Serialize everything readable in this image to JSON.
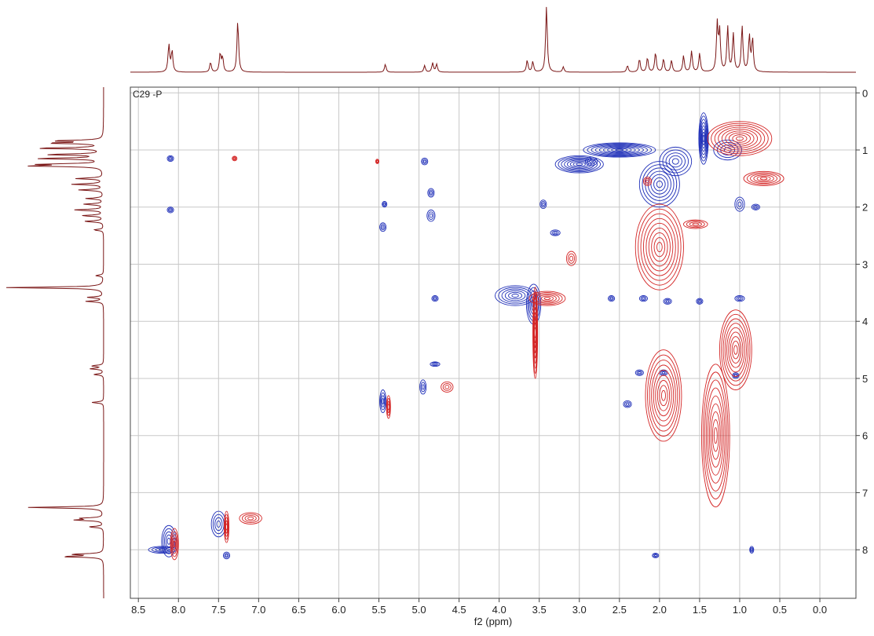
{
  "chart_data": {
    "type": "heatmap",
    "subtype": "2D NMR contour plot (COSY-type, positive/negative contours) with 1D projections",
    "title": "C29 -P",
    "xlabel": "f2 (ppm)",
    "ylabel": "",
    "x_direction": "reversed",
    "y_direction": "increasing-downward",
    "xlim": [
      8.6,
      -0.45
    ],
    "ylim": [
      -0.1,
      8.85
    ],
    "x_ticks": [
      "8.5",
      "8.0",
      "7.5",
      "7.0",
      "6.5",
      "6.0",
      "5.5",
      "5.0",
      "4.5",
      "4.0",
      "3.5",
      "3.0",
      "2.5",
      "2.0",
      "1.5",
      "1.0",
      "0.5",
      "0.0"
    ],
    "y_ticks": [
      "0",
      "1",
      "2",
      "3",
      "4",
      "5",
      "6",
      "7",
      "8"
    ],
    "y_axis_side": "right",
    "grid": true,
    "colors": {
      "positive_contour": "#1f2fb8",
      "negative_contour": "#d42626",
      "projection": "#7a1616",
      "grid": "#c8c8c8",
      "frame": "#444444"
    },
    "series": [
      {
        "sign": "positive",
        "color": "#1f2fb8",
        "peaks": [
          {
            "x": 8.1,
            "y": 1.15,
            "w": 0.08,
            "h": 0.1
          },
          {
            "x": 8.1,
            "y": 2.05,
            "w": 0.08,
            "h": 0.1
          },
          {
            "x": 8.12,
            "y": 7.85,
            "w": 0.18,
            "h": 0.55
          },
          {
            "x": 7.5,
            "y": 7.55,
            "w": 0.18,
            "h": 0.45
          },
          {
            "x": 8.2,
            "y": 8.0,
            "w": 0.35,
            "h": 0.12
          },
          {
            "x": 7.4,
            "y": 8.1,
            "w": 0.08,
            "h": 0.12
          },
          {
            "x": 5.43,
            "y": 1.95,
            "w": 0.06,
            "h": 0.1
          },
          {
            "x": 5.45,
            "y": 2.35,
            "w": 0.08,
            "h": 0.15
          },
          {
            "x": 4.93,
            "y": 1.2,
            "w": 0.08,
            "h": 0.12
          },
          {
            "x": 4.85,
            "y": 1.75,
            "w": 0.08,
            "h": 0.15
          },
          {
            "x": 4.85,
            "y": 2.15,
            "w": 0.1,
            "h": 0.2
          },
          {
            "x": 4.8,
            "y": 3.6,
            "w": 0.08,
            "h": 0.1
          },
          {
            "x": 4.8,
            "y": 4.75,
            "w": 0.12,
            "h": 0.08
          },
          {
            "x": 4.95,
            "y": 5.15,
            "w": 0.08,
            "h": 0.25
          },
          {
            "x": 5.45,
            "y": 5.4,
            "w": 0.08,
            "h": 0.4
          },
          {
            "x": 3.8,
            "y": 3.55,
            "w": 0.5,
            "h": 0.35
          },
          {
            "x": 3.57,
            "y": 3.7,
            "w": 0.18,
            "h": 0.7
          },
          {
            "x": 3.0,
            "y": 1.25,
            "w": 0.6,
            "h": 0.3
          },
          {
            "x": 2.85,
            "y": 1.2,
            "w": 0.15,
            "h": 0.15
          },
          {
            "x": 2.5,
            "y": 1.0,
            "w": 0.9,
            "h": 0.25
          },
          {
            "x": 2.0,
            "y": 1.6,
            "w": 0.5,
            "h": 0.8
          },
          {
            "x": 1.8,
            "y": 1.2,
            "w": 0.4,
            "h": 0.5
          },
          {
            "x": 1.45,
            "y": 0.8,
            "w": 0.12,
            "h": 0.9
          },
          {
            "x": 1.15,
            "y": 1.0,
            "w": 0.35,
            "h": 0.35
          },
          {
            "x": 1.0,
            "y": 1.95,
            "w": 0.12,
            "h": 0.25
          },
          {
            "x": 0.8,
            "y": 2.0,
            "w": 0.1,
            "h": 0.1
          },
          {
            "x": 3.45,
            "y": 1.95,
            "w": 0.08,
            "h": 0.15
          },
          {
            "x": 3.3,
            "y": 2.45,
            "w": 0.12,
            "h": 0.1
          },
          {
            "x": 2.6,
            "y": 3.6,
            "w": 0.08,
            "h": 0.1
          },
          {
            "x": 2.2,
            "y": 3.6,
            "w": 0.1,
            "h": 0.1
          },
          {
            "x": 1.9,
            "y": 3.65,
            "w": 0.1,
            "h": 0.1
          },
          {
            "x": 1.5,
            "y": 3.65,
            "w": 0.08,
            "h": 0.1
          },
          {
            "x": 1.0,
            "y": 3.6,
            "w": 0.12,
            "h": 0.1
          },
          {
            "x": 2.25,
            "y": 4.9,
            "w": 0.1,
            "h": 0.1
          },
          {
            "x": 1.95,
            "y": 4.9,
            "w": 0.1,
            "h": 0.1
          },
          {
            "x": 1.05,
            "y": 4.95,
            "w": 0.08,
            "h": 0.1
          },
          {
            "x": 2.4,
            "y": 5.45,
            "w": 0.1,
            "h": 0.12
          },
          {
            "x": 2.05,
            "y": 8.1,
            "w": 0.08,
            "h": 0.08
          },
          {
            "x": 0.85,
            "y": 8.0,
            "w": 0.05,
            "h": 0.12
          }
        ]
      },
      {
        "sign": "negative",
        "color": "#d42626",
        "peaks": [
          {
            "x": 8.05,
            "y": 7.9,
            "w": 0.1,
            "h": 0.55
          },
          {
            "x": 7.1,
            "y": 7.45,
            "w": 0.28,
            "h": 0.2
          },
          {
            "x": 7.4,
            "y": 7.6,
            "w": 0.06,
            "h": 0.55
          },
          {
            "x": 7.3,
            "y": 1.15,
            "w": 0.06,
            "h": 0.08
          },
          {
            "x": 5.52,
            "y": 1.2,
            "w": 0.04,
            "h": 0.08
          },
          {
            "x": 5.38,
            "y": 5.5,
            "w": 0.05,
            "h": 0.4
          },
          {
            "x": 4.65,
            "y": 5.15,
            "w": 0.15,
            "h": 0.18
          },
          {
            "x": 3.4,
            "y": 3.6,
            "w": 0.45,
            "h": 0.25
          },
          {
            "x": 3.1,
            "y": 2.9,
            "w": 0.12,
            "h": 0.25
          },
          {
            "x": 2.0,
            "y": 2.7,
            "w": 0.6,
            "h": 1.5
          },
          {
            "x": 1.55,
            "y": 2.3,
            "w": 0.3,
            "h": 0.15
          },
          {
            "x": 1.0,
            "y": 0.8,
            "w": 0.8,
            "h": 0.6
          },
          {
            "x": 0.7,
            "y": 1.5,
            "w": 0.5,
            "h": 0.25
          },
          {
            "x": 2.15,
            "y": 1.55,
            "w": 0.1,
            "h": 0.15
          },
          {
            "x": 1.3,
            "y": 6.0,
            "w": 0.35,
            "h": 2.5
          },
          {
            "x": 1.95,
            "y": 5.3,
            "w": 0.45,
            "h": 1.6
          },
          {
            "x": 1.05,
            "y": 4.5,
            "w": 0.4,
            "h": 1.4
          },
          {
            "x": 3.55,
            "y": 4.2,
            "w": 0.06,
            "h": 1.6
          }
        ]
      }
    ],
    "projections": {
      "top_f2": [
        {
          "x": 8.12,
          "h": 0.42
        },
        {
          "x": 8.08,
          "h": 0.32
        },
        {
          "x": 7.6,
          "h": 0.15
        },
        {
          "x": 7.48,
          "h": 0.28
        },
        {
          "x": 7.45,
          "h": 0.22
        },
        {
          "x": 7.26,
          "h": 0.78
        },
        {
          "x": 5.42,
          "h": 0.12
        },
        {
          "x": 4.93,
          "h": 0.1
        },
        {
          "x": 4.83,
          "h": 0.14
        },
        {
          "x": 4.78,
          "h": 0.12
        },
        {
          "x": 3.65,
          "h": 0.18
        },
        {
          "x": 3.58,
          "h": 0.16
        },
        {
          "x": 3.41,
          "h": 1.0
        },
        {
          "x": 3.2,
          "h": 0.08
        },
        {
          "x": 2.4,
          "h": 0.1
        },
        {
          "x": 2.25,
          "h": 0.2
        },
        {
          "x": 2.15,
          "h": 0.22
        },
        {
          "x": 2.05,
          "h": 0.3
        },
        {
          "x": 1.95,
          "h": 0.2
        },
        {
          "x": 1.85,
          "h": 0.18
        },
        {
          "x": 1.7,
          "h": 0.25
        },
        {
          "x": 1.6,
          "h": 0.32
        },
        {
          "x": 1.5,
          "h": 0.28
        },
        {
          "x": 1.28,
          "h": 0.72
        },
        {
          "x": 1.25,
          "h": 0.6
        },
        {
          "x": 1.15,
          "h": 0.68
        },
        {
          "x": 1.08,
          "h": 0.58
        },
        {
          "x": 0.97,
          "h": 0.7
        },
        {
          "x": 0.88,
          "h": 0.55
        },
        {
          "x": 0.84,
          "h": 0.5
        }
      ]
    }
  }
}
